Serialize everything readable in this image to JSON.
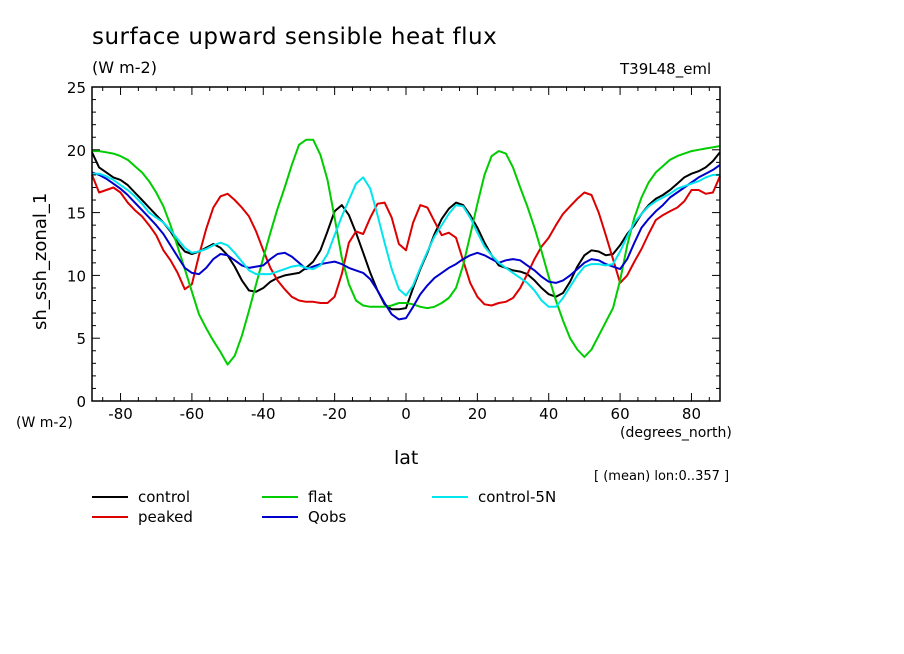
{
  "header": {
    "title": "surface upward sensible heat flux",
    "units_top": "(W m-2)",
    "model": "T39L48_eml",
    "units_left": "(W m-2)",
    "x_units": "(degrees_north)",
    "note": "[ (mean) lon:0..357 ]"
  },
  "chart_data": {
    "type": "line",
    "title": "surface upward sensible heat flux",
    "xlabel": "lat",
    "ylabel": "sh_ssh_zonal_1",
    "xlim": [
      -88,
      88
    ],
    "ylim": [
      0,
      25
    ],
    "x_ticks": [
      -80,
      -60,
      -40,
      -20,
      0,
      20,
      40,
      60,
      80
    ],
    "y_ticks": [
      0,
      5,
      10,
      15,
      20,
      25
    ],
    "grid": false,
    "legend_position": "bottom",
    "x": [
      -88,
      -86,
      -84,
      -82,
      -80,
      -78,
      -76,
      -74,
      -72,
      -70,
      -68,
      -66,
      -64,
      -62,
      -60,
      -58,
      -56,
      -54,
      -52,
      -50,
      -48,
      -46,
      -44,
      -42,
      -40,
      -38,
      -36,
      -34,
      -32,
      -30,
      -28,
      -26,
      -24,
      -22,
      -20,
      -18,
      -16,
      -14,
      -12,
      -10,
      -8,
      -6,
      -4,
      -2,
      0,
      2,
      4,
      6,
      8,
      10,
      12,
      14,
      16,
      18,
      20,
      22,
      24,
      26,
      28,
      30,
      32,
      34,
      36,
      38,
      40,
      42,
      44,
      46,
      48,
      50,
      52,
      54,
      56,
      58,
      60,
      62,
      64,
      66,
      68,
      70,
      72,
      74,
      76,
      78,
      80,
      82,
      84,
      86,
      88
    ],
    "series": [
      {
        "name": "control",
        "color": "#000000",
        "values": [
          19.8,
          18.6,
          18.2,
          17.8,
          17.6,
          17.2,
          16.6,
          16.0,
          15.4,
          14.8,
          14.2,
          13.5,
          12.6,
          11.9,
          11.7,
          11.9,
          12.2,
          12.5,
          12.2,
          11.6,
          10.7,
          9.6,
          8.8,
          8.7,
          9.0,
          9.5,
          9.8,
          10.0,
          10.1,
          10.2,
          10.6,
          11.1,
          12.0,
          13.5,
          15.1,
          15.6,
          14.8,
          13.4,
          11.8,
          10.2,
          8.8,
          7.7,
          7.3,
          7.3,
          7.4,
          9.0,
          10.5,
          11.8,
          13.3,
          14.5,
          15.3,
          15.8,
          15.6,
          14.8,
          13.8,
          12.6,
          11.6,
          10.8,
          10.6,
          10.4,
          10.3,
          10.1,
          9.6,
          9.0,
          8.5,
          8.3,
          8.6,
          9.5,
          10.7,
          11.6,
          12.0,
          11.9,
          11.6,
          11.7,
          12.4,
          13.3,
          14.0,
          14.9,
          15.6,
          16.1,
          16.4,
          16.8,
          17.3,
          17.8,
          18.1,
          18.3,
          18.6,
          19.1,
          19.8
        ]
      },
      {
        "name": "peaked",
        "color": "#dd0000",
        "values": [
          18.0,
          16.6,
          16.8,
          17.0,
          16.6,
          15.8,
          15.2,
          14.7,
          14.0,
          13.2,
          12.0,
          11.2,
          10.2,
          8.9,
          9.3,
          11.6,
          13.7,
          15.4,
          16.3,
          16.5,
          16.0,
          15.4,
          14.7,
          13.5,
          12.0,
          10.6,
          9.6,
          8.9,
          8.3,
          8.0,
          7.9,
          7.9,
          7.8,
          7.8,
          8.3,
          10.1,
          12.6,
          13.5,
          13.3,
          14.6,
          15.7,
          15.8,
          14.6,
          12.5,
          12.0,
          14.2,
          15.6,
          15.4,
          14.3,
          13.2,
          13.4,
          13.0,
          11.2,
          9.4,
          8.3,
          7.7,
          7.6,
          7.8,
          7.9,
          8.2,
          9.0,
          10.1,
          11.3,
          12.3,
          13.0,
          14.0,
          14.9,
          15.5,
          16.1,
          16.6,
          16.4,
          15.0,
          13.2,
          11.3,
          9.4,
          10.0,
          11.1,
          12.1,
          13.3,
          14.4,
          14.8,
          15.1,
          15.4,
          15.9,
          16.8,
          16.8,
          16.5,
          16.6,
          17.9
        ]
      },
      {
        "name": "flat",
        "color": "#00cc00",
        "values": [
          19.9,
          19.9,
          19.8,
          19.7,
          19.5,
          19.2,
          18.7,
          18.2,
          17.5,
          16.6,
          15.5,
          14.0,
          12.3,
          10.5,
          8.7,
          6.9,
          5.8,
          4.8,
          3.9,
          2.9,
          3.6,
          5.2,
          7.2,
          9.3,
          11.4,
          13.4,
          15.3,
          17.0,
          18.8,
          20.4,
          20.8,
          20.8,
          19.6,
          17.6,
          14.6,
          11.4,
          9.3,
          8.0,
          7.6,
          7.5,
          7.5,
          7.5,
          7.6,
          7.8,
          7.8,
          7.7,
          7.5,
          7.4,
          7.5,
          7.8,
          8.2,
          9.0,
          10.8,
          13.2,
          15.7,
          18.0,
          19.5,
          19.9,
          19.7,
          18.6,
          17.0,
          15.5,
          13.8,
          11.9,
          9.9,
          8.0,
          6.4,
          5.0,
          4.1,
          3.5,
          4.1,
          5.2,
          6.3,
          7.4,
          9.6,
          12.4,
          14.6,
          16.2,
          17.4,
          18.2,
          18.7,
          19.2,
          19.5,
          19.7,
          19.9,
          20.0,
          20.1,
          20.2,
          20.3
        ]
      },
      {
        "name": "Qobs",
        "color": "#0000cc",
        "values": [
          18.2,
          18.0,
          17.7,
          17.3,
          16.9,
          16.4,
          15.8,
          15.2,
          14.6,
          14.0,
          13.3,
          12.4,
          11.5,
          10.6,
          10.2,
          10.1,
          10.6,
          11.3,
          11.7,
          11.6,
          11.2,
          10.8,
          10.6,
          10.7,
          10.8,
          11.3,
          11.7,
          11.8,
          11.5,
          11.0,
          10.5,
          10.7,
          10.9,
          11.0,
          11.1,
          10.9,
          10.6,
          10.4,
          10.2,
          9.7,
          8.8,
          7.8,
          6.9,
          6.5,
          6.6,
          7.5,
          8.5,
          9.2,
          9.8,
          10.2,
          10.6,
          10.9,
          11.3,
          11.6,
          11.8,
          11.6,
          11.3,
          11.0,
          11.2,
          11.3,
          11.2,
          10.8,
          10.4,
          9.9,
          9.5,
          9.4,
          9.6,
          10.0,
          10.5,
          11.0,
          11.3,
          11.2,
          10.9,
          10.7,
          10.5,
          11.3,
          12.6,
          13.8,
          14.5,
          15.1,
          15.6,
          16.2,
          16.6,
          17.0,
          17.4,
          17.8,
          18.1,
          18.4,
          18.8
        ]
      },
      {
        "name": "control-5N",
        "color": "#00e5ee",
        "values": [
          18.1,
          18.1,
          17.9,
          17.6,
          17.2,
          16.8,
          16.3,
          15.7,
          15.0,
          14.6,
          14.2,
          13.6,
          12.9,
          12.2,
          11.8,
          11.9,
          12.1,
          12.4,
          12.6,
          12.4,
          11.8,
          11.1,
          10.4,
          10.1,
          10.1,
          10.1,
          10.3,
          10.5,
          10.7,
          10.8,
          10.6,
          10.5,
          10.8,
          11.7,
          13.2,
          14.7,
          16.0,
          17.3,
          17.8,
          16.9,
          14.8,
          12.6,
          10.5,
          8.9,
          8.4,
          9.2,
          10.6,
          11.9,
          13.1,
          14.0,
          14.9,
          15.6,
          15.5,
          14.6,
          13.4,
          12.3,
          11.6,
          11.0,
          10.6,
          10.2,
          9.8,
          9.4,
          8.8,
          8.0,
          7.5,
          7.5,
          8.2,
          9.1,
          10.0,
          10.7,
          10.9,
          10.9,
          10.8,
          10.9,
          11.9,
          13.1,
          14.2,
          14.9,
          15.5,
          15.9,
          16.2,
          16.5,
          16.9,
          17.1,
          17.3,
          17.5,
          17.8,
          18.0,
          18.0
        ]
      }
    ]
  }
}
